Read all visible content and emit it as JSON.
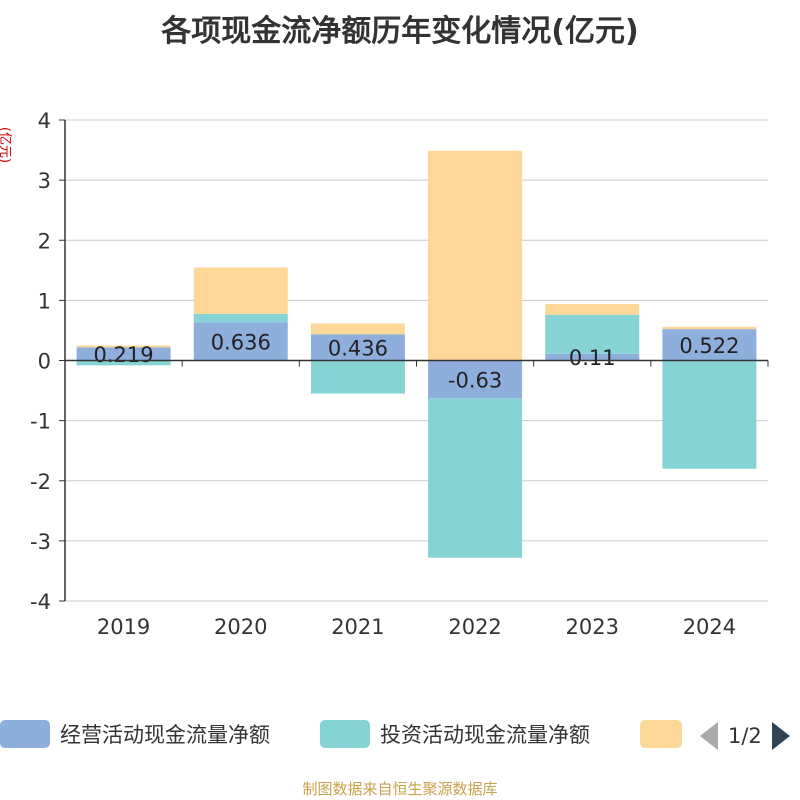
{
  "title": "各项现金流净额历年变化情况(亿元)",
  "footer": "制图数据来自恒生聚源数据库",
  "legend": {
    "items": [
      {
        "label": "经营活动现金流量净额",
        "color": "#8eaedc"
      },
      {
        "label": "投资活动现金流量净额",
        "color": "#86d3d5"
      },
      {
        "label": "",
        "color": "#fdd797"
      }
    ],
    "page": "1/2"
  },
  "chart_data": {
    "type": "bar",
    "stacked": true,
    "ylabel": "(亿元)",
    "ylim": [
      -4,
      4
    ],
    "yticks": [
      -4,
      -3,
      -2,
      -1,
      0,
      1,
      2,
      3,
      4
    ],
    "grid": true,
    "legend_position": "bottom",
    "categories": [
      "2019",
      "2020",
      "2021",
      "2022",
      "2023",
      "2024"
    ],
    "series": [
      {
        "name": "经营活动现金流量净额",
        "color": "#8eaedc",
        "values": [
          0.219,
          0.636,
          0.436,
          -0.63,
          0.11,
          0.522
        ],
        "labels": [
          "0.219",
          "0.636",
          "0.436",
          "-0.63",
          "0.11",
          "0.522"
        ]
      },
      {
        "name": "投资活动现金流量净额",
        "color": "#86d3d5",
        "values": [
          -0.08,
          0.14,
          -0.55,
          -2.65,
          0.65,
          -1.8
        ]
      },
      {
        "name": "",
        "color": "#fdd797",
        "values": [
          0.03,
          0.77,
          0.18,
          3.49,
          0.18,
          0.04
        ]
      }
    ]
  }
}
